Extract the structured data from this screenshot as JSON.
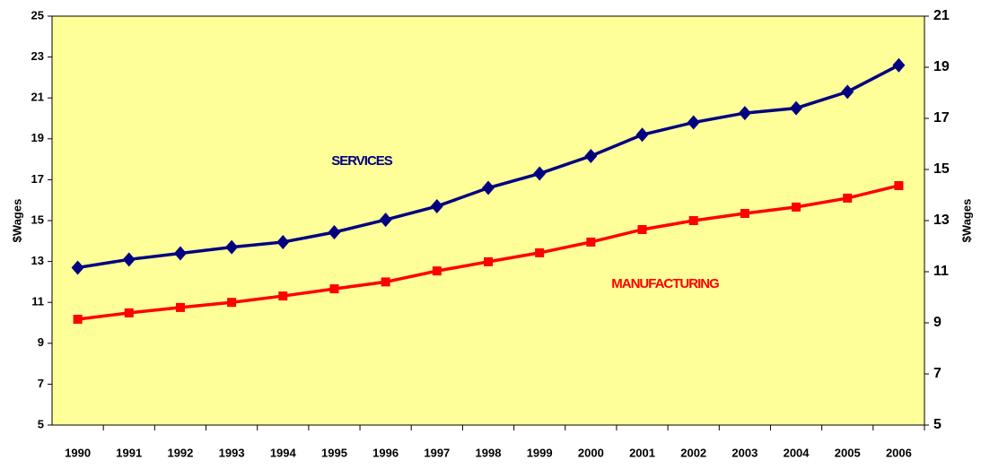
{
  "chart_data": {
    "type": "line",
    "categories": [
      "1990",
      "1991",
      "1992",
      "1993",
      "1994",
      "1995",
      "1996",
      "1997",
      "1998",
      "1999",
      "2000",
      "2001",
      "2002",
      "2003",
      "2004",
      "2005",
      "2006"
    ],
    "series": [
      {
        "name": "SERVICES",
        "color": "#000080",
        "marker": "diamond",
        "values": [
          12.7,
          13.1,
          13.4,
          13.7,
          13.95,
          14.43,
          15.04,
          15.7,
          16.6,
          17.3,
          18.16,
          19.2,
          19.8,
          20.26,
          20.5,
          21.3,
          22.6
        ]
      },
      {
        "name": "MANUFACTURING",
        "color": "#ff0000",
        "marker": "square",
        "axis": "y2",
        "values": [
          9.14,
          9.39,
          9.6,
          9.8,
          10.05,
          10.33,
          10.6,
          11.03,
          11.39,
          11.74,
          12.16,
          12.65,
          13.0,
          13.28,
          13.53,
          13.88,
          14.37
        ]
      }
    ],
    "ylabel": "$Wages",
    "y2label": "$Wages",
    "ylim": [
      5,
      25
    ],
    "yticks": [
      5,
      7,
      9,
      11,
      13,
      15,
      17,
      19,
      21,
      23,
      25
    ],
    "y2lim": [
      5,
      21
    ],
    "y2ticks": [
      5,
      7,
      9,
      11,
      13,
      15,
      17,
      19,
      21
    ],
    "plot_background": "#ffff99"
  }
}
